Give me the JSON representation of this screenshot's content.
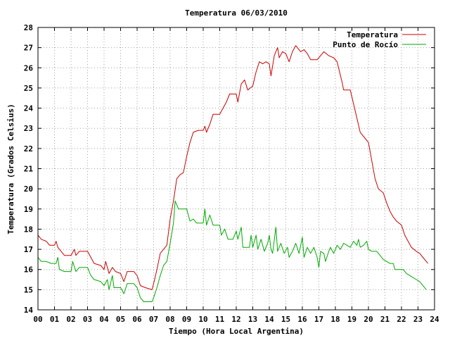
{
  "chart_data": {
    "type": "line",
    "title": "Temperatura 06/03/2010",
    "xlabel": "Tiempo (Hora Local Argentina)",
    "ylabel": "Temperatura (Grados Celsius)",
    "xlim": [
      0,
      24
    ],
    "ylim": [
      14,
      28
    ],
    "x_ticks": [
      "00",
      "01",
      "02",
      "03",
      "04",
      "05",
      "06",
      "07",
      "08",
      "09",
      "10",
      "11",
      "12",
      "13",
      "14",
      "15",
      "16",
      "17",
      "18",
      "19",
      "20",
      "21",
      "22",
      "23",
      "24"
    ],
    "y_ticks": [
      "14",
      "15",
      "16",
      "17",
      "18",
      "19",
      "20",
      "21",
      "22",
      "23",
      "24",
      "25",
      "26",
      "27",
      "28"
    ],
    "grid": true,
    "legend_position": "top-right",
    "series": [
      {
        "name": "Temperatura",
        "color": "#cc0000",
        "points": [
          [
            0.0,
            17.7
          ],
          [
            0.2,
            17.5
          ],
          [
            0.5,
            17.4
          ],
          [
            0.7,
            17.2
          ],
          [
            1.0,
            17.2
          ],
          [
            1.1,
            17.4
          ],
          [
            1.2,
            17.1
          ],
          [
            1.4,
            16.9
          ],
          [
            1.6,
            16.7
          ],
          [
            2.0,
            16.7
          ],
          [
            2.2,
            17.0
          ],
          [
            2.3,
            16.7
          ],
          [
            2.5,
            16.9
          ],
          [
            3.0,
            16.9
          ],
          [
            3.2,
            16.6
          ],
          [
            3.4,
            16.3
          ],
          [
            3.8,
            16.2
          ],
          [
            4.0,
            16.0
          ],
          [
            4.1,
            16.4
          ],
          [
            4.3,
            15.8
          ],
          [
            4.5,
            16.1
          ],
          [
            4.7,
            15.9
          ],
          [
            5.0,
            15.8
          ],
          [
            5.2,
            15.4
          ],
          [
            5.4,
            15.9
          ],
          [
            5.8,
            15.9
          ],
          [
            6.0,
            15.7
          ],
          [
            6.2,
            15.2
          ],
          [
            6.5,
            15.1
          ],
          [
            6.9,
            15.0
          ],
          [
            7.0,
            15.3
          ],
          [
            7.2,
            16.0
          ],
          [
            7.4,
            16.8
          ],
          [
            7.6,
            17.0
          ],
          [
            7.8,
            17.2
          ],
          [
            8.0,
            18.5
          ],
          [
            8.2,
            19.4
          ],
          [
            8.4,
            20.5
          ],
          [
            8.6,
            20.7
          ],
          [
            8.8,
            20.8
          ],
          [
            9.0,
            21.6
          ],
          [
            9.2,
            22.3
          ],
          [
            9.4,
            22.8
          ],
          [
            9.7,
            22.9
          ],
          [
            10.0,
            22.9
          ],
          [
            10.1,
            23.1
          ],
          [
            10.2,
            22.8
          ],
          [
            10.4,
            23.2
          ],
          [
            10.6,
            23.7
          ],
          [
            11.0,
            23.7
          ],
          [
            11.2,
            24.0
          ],
          [
            11.4,
            24.3
          ],
          [
            11.6,
            24.7
          ],
          [
            12.0,
            24.7
          ],
          [
            12.1,
            24.3
          ],
          [
            12.3,
            25.2
          ],
          [
            12.5,
            25.4
          ],
          [
            12.7,
            24.9
          ],
          [
            13.0,
            25.1
          ],
          [
            13.2,
            25.8
          ],
          [
            13.4,
            26.3
          ],
          [
            13.6,
            26.2
          ],
          [
            13.8,
            26.3
          ],
          [
            14.0,
            26.2
          ],
          [
            14.1,
            25.6
          ],
          [
            14.3,
            26.6
          ],
          [
            14.5,
            27.0
          ],
          [
            14.6,
            26.5
          ],
          [
            14.8,
            26.8
          ],
          [
            15.0,
            26.7
          ],
          [
            15.2,
            26.3
          ],
          [
            15.4,
            26.8
          ],
          [
            15.6,
            27.1
          ],
          [
            15.9,
            26.8
          ],
          [
            16.1,
            26.9
          ],
          [
            16.3,
            26.7
          ],
          [
            16.5,
            26.4
          ],
          [
            16.9,
            26.4
          ],
          [
            17.1,
            26.6
          ],
          [
            17.3,
            26.8
          ],
          [
            17.6,
            26.6
          ],
          [
            17.9,
            26.5
          ],
          [
            18.1,
            26.3
          ],
          [
            18.4,
            25.3
          ],
          [
            18.5,
            24.9
          ],
          [
            18.9,
            24.9
          ],
          [
            19.1,
            24.2
          ],
          [
            19.3,
            23.5
          ],
          [
            19.5,
            22.8
          ],
          [
            19.8,
            22.5
          ],
          [
            20.0,
            22.3
          ],
          [
            20.2,
            21.4
          ],
          [
            20.4,
            20.5
          ],
          [
            20.6,
            20.0
          ],
          [
            20.9,
            19.8
          ],
          [
            21.1,
            19.3
          ],
          [
            21.3,
            18.9
          ],
          [
            21.5,
            18.6
          ],
          [
            21.7,
            18.4
          ],
          [
            22.0,
            18.2
          ],
          [
            22.2,
            17.7
          ],
          [
            22.4,
            17.4
          ],
          [
            22.6,
            17.1
          ],
          [
            22.9,
            16.9
          ],
          [
            23.1,
            16.8
          ],
          [
            23.3,
            16.6
          ],
          [
            23.5,
            16.4
          ],
          [
            23.6,
            16.3
          ]
        ]
      },
      {
        "name": "Punto de Rocío",
        "color": "#00aa00",
        "points": [
          [
            0.0,
            16.6
          ],
          [
            0.2,
            16.4
          ],
          [
            0.5,
            16.4
          ],
          [
            0.8,
            16.3
          ],
          [
            1.1,
            16.3
          ],
          [
            1.2,
            16.6
          ],
          [
            1.3,
            16.0
          ],
          [
            1.6,
            15.9
          ],
          [
            2.0,
            15.9
          ],
          [
            2.1,
            16.4
          ],
          [
            2.3,
            15.9
          ],
          [
            2.5,
            16.1
          ],
          [
            3.0,
            16.1
          ],
          [
            3.2,
            15.7
          ],
          [
            3.4,
            15.5
          ],
          [
            3.8,
            15.4
          ],
          [
            4.0,
            15.2
          ],
          [
            4.2,
            15.5
          ],
          [
            4.3,
            15.0
          ],
          [
            4.5,
            15.7
          ],
          [
            4.6,
            15.1
          ],
          [
            5.0,
            15.1
          ],
          [
            5.2,
            14.8
          ],
          [
            5.4,
            15.3
          ],
          [
            5.8,
            15.3
          ],
          [
            6.0,
            15.1
          ],
          [
            6.2,
            14.6
          ],
          [
            6.4,
            14.4
          ],
          [
            6.9,
            14.4
          ],
          [
            7.0,
            14.6
          ],
          [
            7.2,
            15.1
          ],
          [
            7.4,
            15.7
          ],
          [
            7.6,
            16.2
          ],
          [
            7.8,
            16.4
          ],
          [
            8.0,
            17.3
          ],
          [
            8.2,
            18.3
          ],
          [
            8.3,
            19.4
          ],
          [
            8.5,
            19.0
          ],
          [
            9.0,
            19.0
          ],
          [
            9.2,
            18.4
          ],
          [
            9.4,
            18.5
          ],
          [
            9.6,
            18.3
          ],
          [
            10.0,
            18.3
          ],
          [
            10.1,
            19.0
          ],
          [
            10.2,
            18.2
          ],
          [
            10.4,
            18.7
          ],
          [
            10.6,
            18.2
          ],
          [
            11.0,
            18.2
          ],
          [
            11.1,
            17.7
          ],
          [
            11.3,
            18.0
          ],
          [
            11.5,
            17.5
          ],
          [
            11.8,
            17.5
          ],
          [
            12.0,
            17.9
          ],
          [
            12.1,
            17.5
          ],
          [
            12.3,
            18.1
          ],
          [
            12.4,
            17.1
          ],
          [
            12.8,
            17.1
          ],
          [
            12.9,
            17.7
          ],
          [
            13.0,
            17.1
          ],
          [
            13.2,
            17.7
          ],
          [
            13.3,
            17.0
          ],
          [
            13.5,
            17.5
          ],
          [
            13.7,
            16.9
          ],
          [
            13.9,
            17.3
          ],
          [
            14.0,
            17.7
          ],
          [
            14.1,
            17.0
          ],
          [
            14.2,
            16.8
          ],
          [
            14.4,
            18.1
          ],
          [
            14.5,
            16.9
          ],
          [
            14.7,
            17.3
          ],
          [
            14.9,
            16.8
          ],
          [
            15.1,
            17.1
          ],
          [
            15.2,
            16.6
          ],
          [
            15.4,
            16.9
          ],
          [
            15.6,
            17.3
          ],
          [
            15.8,
            16.8
          ],
          [
            16.0,
            17.6
          ],
          [
            16.1,
            16.6
          ],
          [
            16.3,
            17.1
          ],
          [
            16.5,
            16.8
          ],
          [
            16.7,
            17.1
          ],
          [
            16.9,
            16.6
          ],
          [
            17.0,
            16.1
          ],
          [
            17.1,
            16.9
          ],
          [
            17.3,
            16.8
          ],
          [
            17.4,
            16.4
          ],
          [
            17.6,
            16.9
          ],
          [
            17.7,
            17.1
          ],
          [
            17.9,
            16.8
          ],
          [
            18.1,
            17.2
          ],
          [
            18.3,
            17.0
          ],
          [
            18.5,
            17.3
          ],
          [
            18.7,
            17.2
          ],
          [
            18.9,
            17.1
          ],
          [
            19.1,
            17.4
          ],
          [
            19.3,
            17.2
          ],
          [
            19.4,
            17.5
          ],
          [
            19.5,
            17.1
          ],
          [
            19.7,
            17.2
          ],
          [
            19.9,
            17.4
          ],
          [
            20.0,
            17.0
          ],
          [
            20.2,
            16.9
          ],
          [
            20.5,
            16.9
          ],
          [
            20.7,
            16.7
          ],
          [
            20.9,
            16.5
          ],
          [
            21.1,
            16.4
          ],
          [
            21.3,
            16.3
          ],
          [
            21.5,
            16.3
          ],
          [
            21.6,
            16.0
          ],
          [
            22.1,
            16.0
          ],
          [
            22.3,
            15.8
          ],
          [
            22.5,
            15.7
          ],
          [
            22.7,
            15.6
          ],
          [
            22.9,
            15.5
          ],
          [
            23.1,
            15.4
          ],
          [
            23.3,
            15.2
          ],
          [
            23.5,
            15.0
          ]
        ]
      }
    ]
  }
}
